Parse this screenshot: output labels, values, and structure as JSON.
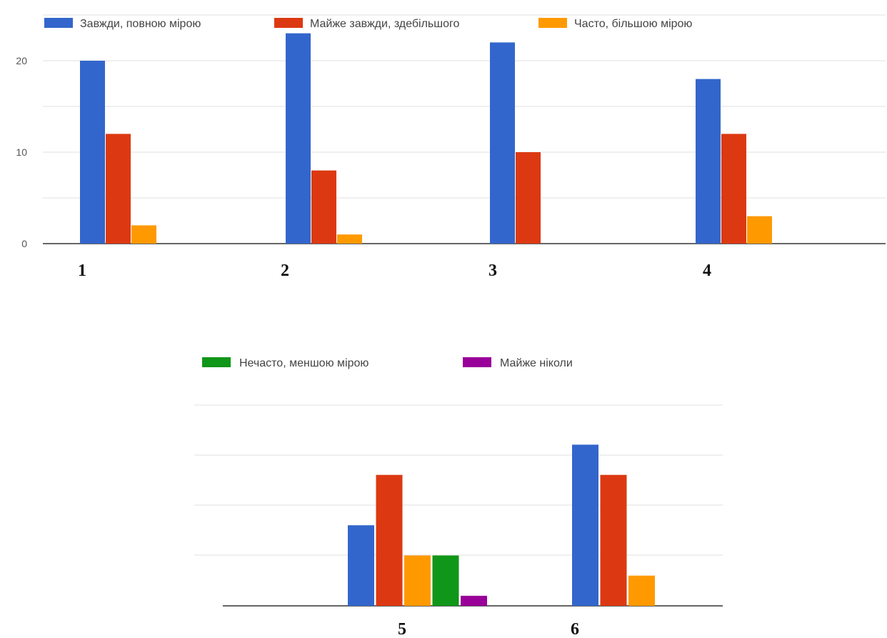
{
  "chart_data": [
    {
      "type": "bar",
      "categories": [
        "1",
        "2",
        "3",
        "4"
      ],
      "ylim": [
        0,
        23
      ],
      "yticks": [
        "0",
        "10",
        "20"
      ],
      "grid": true,
      "legend_position": "top",
      "series": [
        {
          "name": "Завжди, повною мірою",
          "color": "#3366cc",
          "values": [
            20,
            23,
            22,
            18
          ]
        },
        {
          "name": "Майже завжди, здебільшого",
          "color": "#dc3912",
          "values": [
            12,
            8,
            10,
            12
          ]
        },
        {
          "name": "Часто, більшою мірою",
          "color": "#ff9900",
          "values": [
            2,
            1,
            0,
            3
          ]
        }
      ]
    },
    {
      "type": "bar",
      "categories": [
        "5",
        "6"
      ],
      "ylim": [
        0,
        16
      ],
      "grid": true,
      "legend_position": "top",
      "series": [
        {
          "name": "",
          "color": "#3366cc",
          "values": [
            8,
            16
          ]
        },
        {
          "name": "",
          "color": "#dc3912",
          "values": [
            13,
            13
          ]
        },
        {
          "name": "",
          "color": "#ff9900",
          "values": [
            5,
            3
          ]
        },
        {
          "name": "Нечасто, меншою мірою",
          "color": "#109618",
          "values": [
            5,
            0
          ]
        },
        {
          "name": "Майже ніколи",
          "color": "#990099",
          "values": [
            1,
            0
          ]
        }
      ]
    }
  ]
}
